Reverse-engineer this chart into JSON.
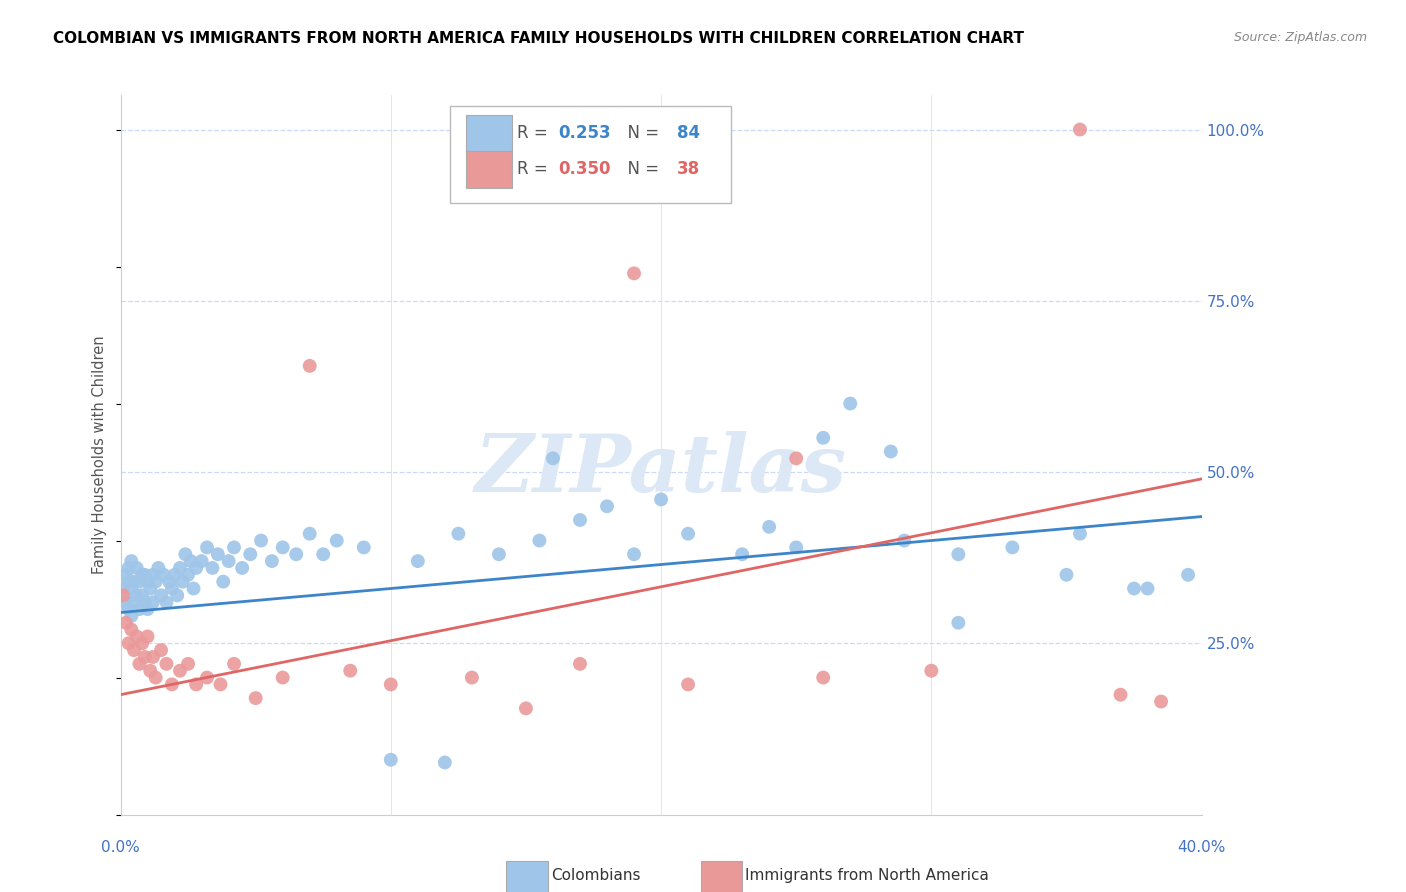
{
  "title": "COLOMBIAN VS IMMIGRANTS FROM NORTH AMERICA FAMILY HOUSEHOLDS WITH CHILDREN CORRELATION CHART",
  "source": "Source: ZipAtlas.com",
  "ylabel": "Family Households with Children",
  "xlim": [
    0.0,
    0.4
  ],
  "ylim": [
    0.0,
    1.05
  ],
  "blue_color": "#9fc5e8",
  "pink_color": "#ea9999",
  "blue_line_color": "#3d85c8",
  "pink_line_color": "#e06666",
  "blue_text_color": "#3d85c8",
  "pink_text_color": "#e06666",
  "right_axis_color": "#4472c4",
  "watermark_color": "#dce8f5",
  "grid_color": "#c9daf8",
  "blue_line_y0": 0.295,
  "blue_line_y1": 0.435,
  "pink_line_y0": 0.175,
  "pink_line_y1": 0.49,
  "blue_x": [
    0.001,
    0.002,
    0.002,
    0.003,
    0.003,
    0.003,
    0.004,
    0.004,
    0.004,
    0.005,
    0.005,
    0.006,
    0.006,
    0.007,
    0.007,
    0.008,
    0.008,
    0.009,
    0.009,
    0.01,
    0.01,
    0.011,
    0.012,
    0.012,
    0.013,
    0.014,
    0.015,
    0.016,
    0.017,
    0.018,
    0.019,
    0.02,
    0.021,
    0.022,
    0.023,
    0.024,
    0.025,
    0.026,
    0.027,
    0.028,
    0.03,
    0.032,
    0.034,
    0.036,
    0.038,
    0.04,
    0.042,
    0.045,
    0.048,
    0.052,
    0.056,
    0.06,
    0.065,
    0.07,
    0.075,
    0.08,
    0.09,
    0.1,
    0.11,
    0.125,
    0.14,
    0.155,
    0.17,
    0.19,
    0.21,
    0.23,
    0.25,
    0.27,
    0.29,
    0.31,
    0.33,
    0.355,
    0.375,
    0.395,
    0.12,
    0.26,
    0.285,
    0.2,
    0.24,
    0.31,
    0.35,
    0.38,
    0.16,
    0.18
  ],
  "blue_y": [
    0.33,
    0.31,
    0.35,
    0.3,
    0.34,
    0.36,
    0.29,
    0.33,
    0.37,
    0.31,
    0.34,
    0.32,
    0.36,
    0.3,
    0.34,
    0.32,
    0.35,
    0.31,
    0.35,
    0.3,
    0.34,
    0.33,
    0.35,
    0.31,
    0.34,
    0.36,
    0.32,
    0.35,
    0.31,
    0.34,
    0.33,
    0.35,
    0.32,
    0.36,
    0.34,
    0.38,
    0.35,
    0.37,
    0.33,
    0.36,
    0.37,
    0.39,
    0.36,
    0.38,
    0.34,
    0.37,
    0.39,
    0.36,
    0.38,
    0.4,
    0.37,
    0.39,
    0.38,
    0.41,
    0.38,
    0.4,
    0.39,
    0.08,
    0.37,
    0.41,
    0.38,
    0.4,
    0.43,
    0.38,
    0.41,
    0.38,
    0.39,
    0.6,
    0.4,
    0.38,
    0.39,
    0.41,
    0.33,
    0.35,
    0.076,
    0.55,
    0.53,
    0.46,
    0.42,
    0.28,
    0.35,
    0.33,
    0.52,
    0.45
  ],
  "pink_x": [
    0.001,
    0.002,
    0.003,
    0.004,
    0.005,
    0.006,
    0.007,
    0.008,
    0.009,
    0.01,
    0.011,
    0.012,
    0.013,
    0.015,
    0.017,
    0.019,
    0.022,
    0.025,
    0.028,
    0.032,
    0.037,
    0.042,
    0.05,
    0.06,
    0.07,
    0.085,
    0.1,
    0.13,
    0.17,
    0.21,
    0.25,
    0.26,
    0.3,
    0.355,
    0.37,
    0.385,
    0.15,
    0.19
  ],
  "pink_y": [
    0.32,
    0.28,
    0.25,
    0.27,
    0.24,
    0.26,
    0.22,
    0.25,
    0.23,
    0.26,
    0.21,
    0.23,
    0.2,
    0.24,
    0.22,
    0.19,
    0.21,
    0.22,
    0.19,
    0.2,
    0.19,
    0.22,
    0.17,
    0.2,
    0.655,
    0.21,
    0.19,
    0.2,
    0.22,
    0.19,
    0.52,
    0.2,
    0.21,
    1.0,
    0.175,
    0.165,
    0.155,
    0.79
  ]
}
